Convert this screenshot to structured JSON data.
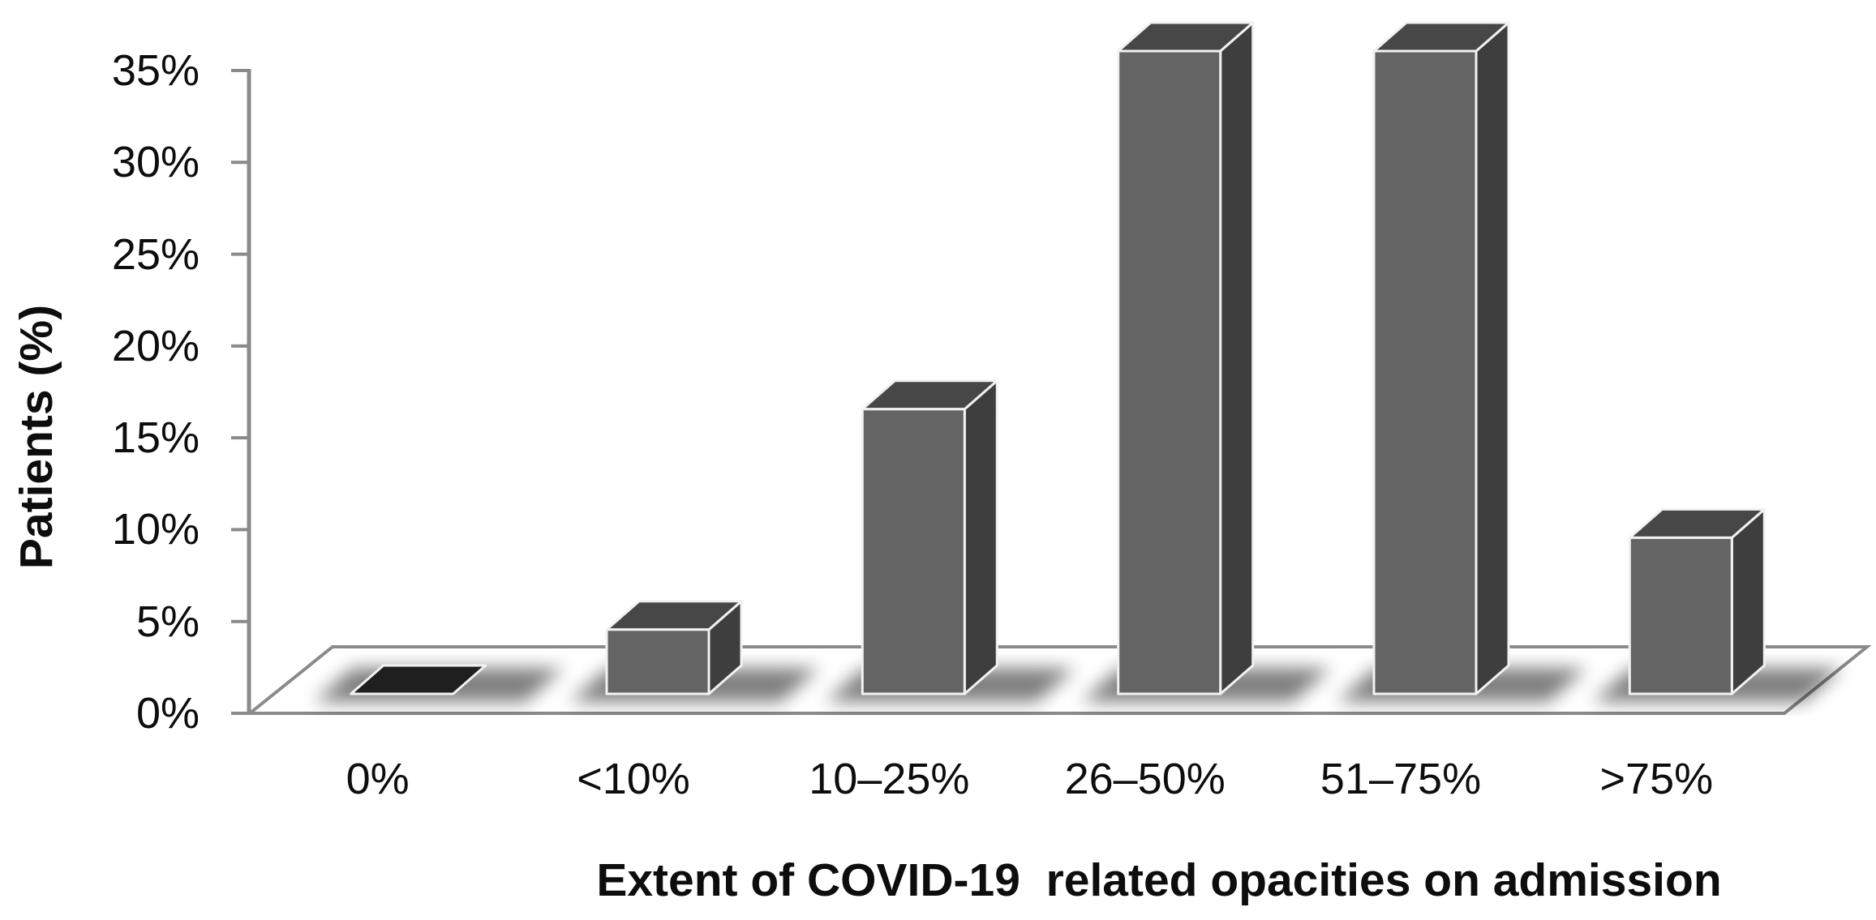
{
  "chart_data": {
    "type": "bar",
    "subtype": "3d-column",
    "title": "",
    "xlabel": "Extent of COVID-19  related opacities on admission",
    "ylabel": "Patients (%)",
    "categories": [
      "0%",
      "<10%",
      "10–25%",
      "26–50%",
      "51–75%",
      ">75%"
    ],
    "values": [
      0,
      3.5,
      15.5,
      35,
      35,
      8.5
    ],
    "series": [
      {
        "name": "Patients (%)",
        "values": [
          0,
          3.5,
          15.5,
          35,
          35,
          8.5
        ]
      }
    ],
    "ylim": [
      0,
      35
    ],
    "ytick_step": 5,
    "ytick_labels": [
      "0%",
      "5%",
      "10%",
      "15%",
      "20%",
      "25%",
      "30%",
      "35%"
    ],
    "grid": false,
    "legend": false,
    "colors": {
      "bar_front": "#646464",
      "bar_top": "#474747",
      "bar_side": "#3e3e3e",
      "zero_plate": "#1f1f1f",
      "bar_edge": "#f2f2f2",
      "axis_line": "#8a8a8a",
      "floor_fill": "#ffffff",
      "shadow": "#000000",
      "text": "#0d0d0d",
      "background": "#ffffff"
    }
  }
}
